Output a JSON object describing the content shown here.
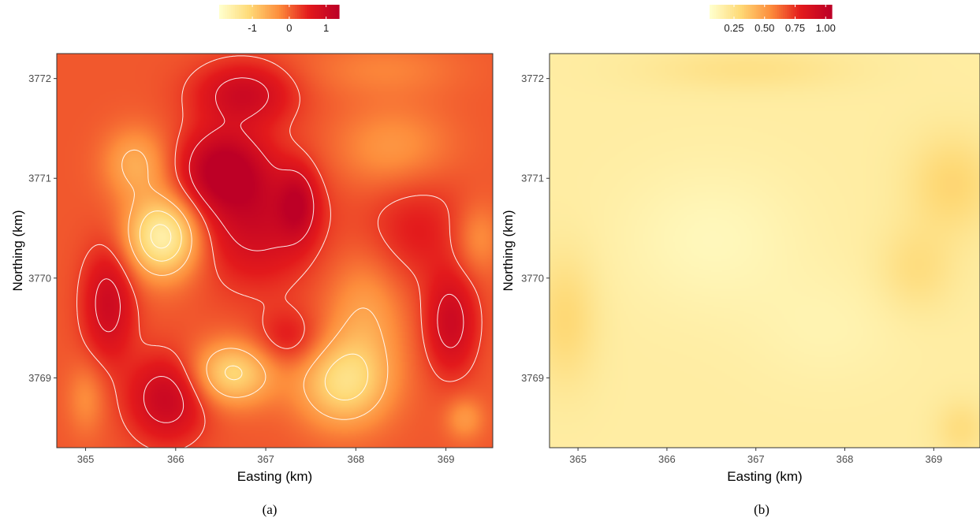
{
  "chart_data": [
    {
      "type": "heatmap",
      "caption": "(a)",
      "xlabel": "Easting (km)",
      "ylabel": "Northing (km)",
      "xlim": [
        364.68,
        369.52
      ],
      "ylim": [
        3768.3,
        3772.25
      ],
      "x_ticks": [
        365,
        366,
        367,
        368,
        369
      ],
      "y_ticks": [
        3769,
        3770,
        3771,
        3772
      ],
      "grid": false,
      "contours": true,
      "colorscale": [
        "#ffffcc",
        "#fed976",
        "#fd8d3c",
        "#e31a1c",
        "#bd0026"
      ],
      "legend": {
        "placement": "top",
        "ticks": [
          -1,
          0,
          1
        ],
        "tick_labels": [
          "-1",
          "0",
          "1"
        ],
        "range": [
          -1.9,
          1.35
        ]
      },
      "field": {
        "base": 0.1,
        "blobs": [
          {
            "x": 365.85,
            "y": 3770.42,
            "value": -1.7,
            "sx": 0.28,
            "sy": 0.28
          },
          {
            "x": 365.55,
            "y": 3771.15,
            "value": -0.7,
            "sx": 0.25,
            "sy": 0.25
          },
          {
            "x": 366.62,
            "y": 3769.05,
            "value": -1.2,
            "sx": 0.32,
            "sy": 0.22
          },
          {
            "x": 367.85,
            "y": 3768.95,
            "value": -1.2,
            "sx": 0.35,
            "sy": 0.3
          },
          {
            "x": 368.1,
            "y": 3769.6,
            "value": -0.6,
            "sx": 0.3,
            "sy": 0.45
          },
          {
            "x": 366.5,
            "y": 3771.1,
            "value": 1.2,
            "sx": 0.32,
            "sy": 0.28
          },
          {
            "x": 366.75,
            "y": 3771.85,
            "value": 0.9,
            "sx": 0.38,
            "sy": 0.22
          },
          {
            "x": 366.9,
            "y": 3770.6,
            "value": 0.9,
            "sx": 0.45,
            "sy": 0.45
          },
          {
            "x": 367.35,
            "y": 3770.75,
            "value": 0.8,
            "sx": 0.15,
            "sy": 0.25
          },
          {
            "x": 365.25,
            "y": 3769.75,
            "value": 0.9,
            "sx": 0.2,
            "sy": 0.4
          },
          {
            "x": 365.9,
            "y": 3768.8,
            "value": 1.0,
            "sx": 0.3,
            "sy": 0.3
          },
          {
            "x": 369.05,
            "y": 3769.55,
            "value": 0.9,
            "sx": 0.2,
            "sy": 0.35
          },
          {
            "x": 368.4,
            "y": 3771.3,
            "value": -0.5,
            "sx": 0.45,
            "sy": 0.3
          },
          {
            "x": 368.3,
            "y": 3772.1,
            "value": -0.3,
            "sx": 0.6,
            "sy": 0.2
          },
          {
            "x": 369.35,
            "y": 3770.4,
            "value": -0.45,
            "sx": 0.18,
            "sy": 0.25
          },
          {
            "x": 368.65,
            "y": 3770.5,
            "value": 0.45,
            "sx": 0.4,
            "sy": 0.4
          },
          {
            "x": 365.0,
            "y": 3768.8,
            "value": -0.4,
            "sx": 0.15,
            "sy": 0.25
          },
          {
            "x": 367.25,
            "y": 3769.4,
            "value": 0.5,
            "sx": 0.25,
            "sy": 0.2
          },
          {
            "x": 369.2,
            "y": 3768.6,
            "value": -0.5,
            "sx": 0.15,
            "sy": 0.15
          }
        ]
      },
      "contour_levels": [
        -1.4,
        -1.0,
        -0.5,
        0.3,
        0.8
      ]
    },
    {
      "type": "heatmap",
      "caption": "(b)",
      "xlabel": "Easting (km)",
      "ylabel": "Northing (km)",
      "xlim": [
        364.68,
        369.52
      ],
      "ylim": [
        3768.3,
        3772.25
      ],
      "x_ticks": [
        365,
        366,
        367,
        368,
        369
      ],
      "y_ticks": [
        3769,
        3770,
        3771,
        3772
      ],
      "grid": false,
      "contours": false,
      "colorscale": [
        "#ffffcc",
        "#fed976",
        "#fd8d3c",
        "#e31a1c",
        "#bd0026"
      ],
      "legend": {
        "placement": "top",
        "ticks": [
          0.25,
          0.5,
          0.75,
          1.0
        ],
        "tick_labels": [
          "0.25",
          "0.50",
          "0.75",
          "1.00"
        ],
        "range": [
          0.05,
          1.05
        ]
      },
      "field": {
        "base": 0.17,
        "blobs": [
          {
            "x": 364.85,
            "y": 3769.6,
            "value": 0.13,
            "sx": 0.25,
            "sy": 0.45
          },
          {
            "x": 369.2,
            "y": 3770.95,
            "value": 0.14,
            "sx": 0.35,
            "sy": 0.35
          },
          {
            "x": 368.8,
            "y": 3770.1,
            "value": 0.1,
            "sx": 0.3,
            "sy": 0.3
          },
          {
            "x": 369.3,
            "y": 3768.5,
            "value": 0.1,
            "sx": 0.2,
            "sy": 0.2
          },
          {
            "x": 366.9,
            "y": 3772.1,
            "value": 0.08,
            "sx": 0.8,
            "sy": 0.15
          },
          {
            "x": 366.5,
            "y": 3770.4,
            "value": -0.07,
            "sx": 0.7,
            "sy": 0.5
          },
          {
            "x": 367.8,
            "y": 3769.5,
            "value": -0.04,
            "sx": 0.6,
            "sy": 0.4
          }
        ]
      }
    }
  ]
}
